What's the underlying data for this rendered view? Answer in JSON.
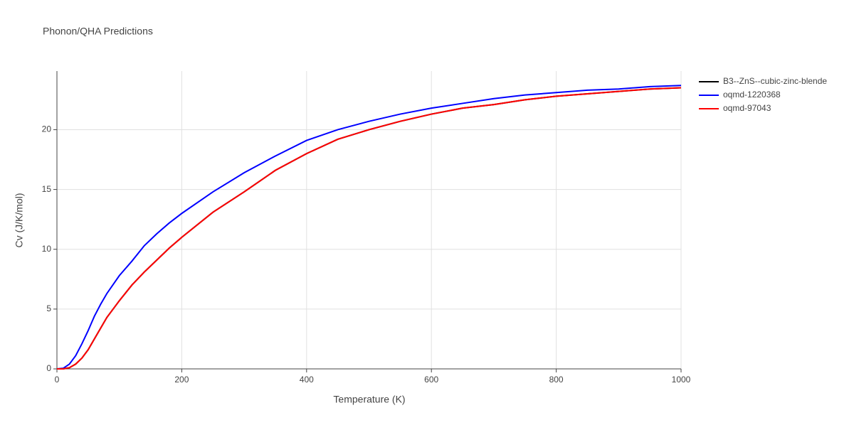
{
  "chart_data": {
    "type": "line",
    "title": "Phonon/QHA Predictions",
    "x_label": "Temperature (K)",
    "y_label": "Cv (J/K/mol)",
    "x": [
      0,
      10,
      20,
      30,
      40,
      50,
      60,
      70,
      80,
      100,
      120,
      140,
      160,
      180,
      200,
      250,
      300,
      350,
      400,
      450,
      500,
      550,
      600,
      650,
      700,
      750,
      800,
      850,
      900,
      950,
      1000
    ],
    "series": [
      {
        "name": "B3--ZnS--cubic-zinc-blende",
        "color": "#000000",
        "values": [
          0,
          0,
          0.1,
          0.4,
          0.9,
          1.6,
          2.5,
          3.4,
          4.3,
          5.7,
          7.0,
          8.1,
          9.1,
          10.1,
          11.0,
          13.1,
          14.8,
          16.6,
          18.0,
          19.2,
          20.0,
          20.7,
          21.3,
          21.8,
          22.1,
          22.5,
          22.8,
          23.0,
          23.2,
          23.4,
          23.5
        ]
      },
      {
        "name": "oqmd-1220368",
        "color": "#0000ff",
        "values": [
          0,
          0.05,
          0.4,
          1.1,
          2.1,
          3.2,
          4.4,
          5.4,
          6.3,
          7.8,
          9.0,
          10.3,
          11.3,
          12.2,
          13.0,
          14.8,
          16.4,
          17.8,
          19.1,
          20.0,
          20.7,
          21.3,
          21.8,
          22.2,
          22.6,
          22.9,
          23.1,
          23.3,
          23.4,
          23.6,
          23.7
        ]
      },
      {
        "name": "oqmd-97043",
        "color": "#ff0000",
        "values": [
          0,
          0,
          0.1,
          0.4,
          0.9,
          1.6,
          2.5,
          3.4,
          4.3,
          5.7,
          7.0,
          8.1,
          9.1,
          10.1,
          11.0,
          13.1,
          14.8,
          16.6,
          18.0,
          19.2,
          20.0,
          20.7,
          21.3,
          21.8,
          22.1,
          22.5,
          22.8,
          23.0,
          23.2,
          23.4,
          23.5
        ]
      }
    ],
    "xlim": [
      0,
      1000
    ],
    "xticks": [
      0,
      200,
      400,
      600,
      800,
      1000
    ],
    "ylim": [
      0,
      24.9
    ],
    "yticks": [
      0,
      5,
      10,
      15,
      20
    ],
    "grid": true,
    "legend": "outside-right"
  }
}
